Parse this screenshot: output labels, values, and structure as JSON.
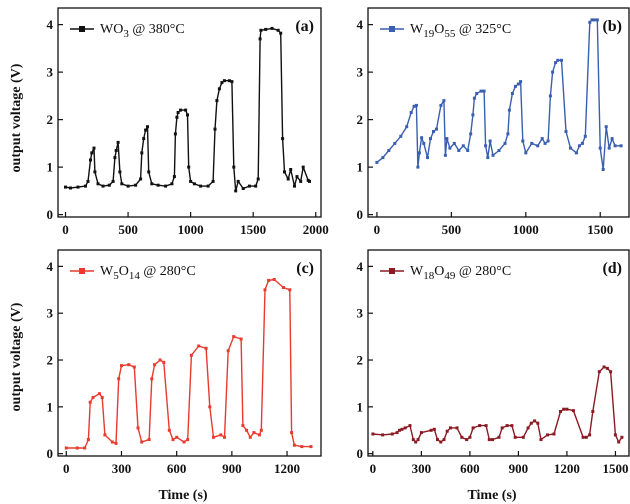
{
  "figure": {
    "shared_ylabel": "output voltage (V)",
    "shared_xlabel": "Time (s)"
  },
  "chart_data": [
    {
      "type": "line",
      "panel_label": "(a)",
      "legend_prefix": "WO",
      "legend_sub1": "3",
      "legend_mid": "",
      "legend_sub2": "",
      "legend_suffix": " @ 380°C",
      "series": [
        {
          "name": "WO3 @ 380°C"
        }
      ],
      "color": "#111111",
      "xlim": [
        -60,
        2050
      ],
      "ylim": [
        -0.05,
        4.35
      ],
      "xticks": [
        0,
        500,
        1000,
        1500,
        2000
      ],
      "yticks": [
        0,
        1,
        2,
        3,
        4
      ],
      "show_y_tick_labels": true,
      "ylabel": "output voltage (V)",
      "xlabel": "",
      "legend_position": "top-left",
      "x": [
        0,
        40,
        100,
        160,
        180,
        200,
        210,
        228,
        235,
        260,
        300,
        350,
        380,
        395,
        405,
        420,
        435,
        450,
        500,
        560,
        600,
        610,
        625,
        640,
        655,
        665,
        690,
        740,
        800,
        850,
        870,
        878,
        890,
        900,
        920,
        960,
        975,
        985,
        1000,
        1030,
        1080,
        1140,
        1180,
        1195,
        1210,
        1230,
        1250,
        1270,
        1310,
        1330,
        1345,
        1360,
        1380,
        1420,
        1470,
        1520,
        1540,
        1555,
        1562,
        1600,
        1650,
        1700,
        1720,
        1735,
        1750,
        1780,
        1800,
        1830,
        1850,
        1880,
        1900,
        1940,
        1950
      ],
      "values": [
        0.58,
        0.56,
        0.58,
        0.6,
        0.7,
        1.15,
        1.3,
        1.4,
        0.9,
        0.65,
        0.6,
        0.62,
        0.7,
        1.2,
        1.35,
        1.52,
        0.9,
        0.65,
        0.6,
        0.62,
        0.75,
        1.3,
        1.6,
        1.78,
        1.85,
        0.9,
        0.65,
        0.62,
        0.6,
        0.65,
        0.8,
        1.7,
        2.05,
        2.15,
        2.2,
        2.2,
        2.1,
        1.0,
        0.7,
        0.65,
        0.6,
        0.6,
        0.7,
        1.8,
        2.4,
        2.65,
        2.78,
        2.82,
        2.82,
        2.8,
        1.0,
        0.5,
        0.7,
        0.55,
        0.6,
        0.6,
        0.75,
        3.7,
        3.88,
        3.9,
        3.92,
        3.88,
        3.82,
        1.6,
        0.9,
        0.75,
        0.95,
        0.6,
        0.8,
        0.7,
        1.0,
        0.72,
        0.7
      ]
    },
    {
      "type": "line",
      "panel_label": "(b)",
      "legend_prefix": "W",
      "legend_sub1": "19",
      "legend_mid": "O",
      "legend_sub2": "55",
      "legend_suffix": " @ 325°C",
      "series": [
        {
          "name": "W19O55 @ 325°C"
        }
      ],
      "color": "#3a5eb0",
      "xlim": [
        -60,
        1700
      ],
      "ylim": [
        -0.05,
        4.35
      ],
      "xticks": [
        0,
        500,
        1000,
        1500
      ],
      "yticks": [
        0,
        1,
        2,
        3,
        4
      ],
      "show_y_tick_labels": true,
      "ylabel": "",
      "xlabel": "",
      "legend_position": "top-left",
      "x": [
        0,
        40,
        80,
        120,
        160,
        200,
        230,
        250,
        265,
        275,
        285,
        300,
        315,
        340,
        360,
        380,
        400,
        430,
        450,
        460,
        470,
        490,
        520,
        550,
        580,
        610,
        630,
        645,
        655,
        670,
        700,
        720,
        730,
        745,
        760,
        780,
        820,
        860,
        880,
        890,
        910,
        930,
        950,
        965,
        980,
        1000,
        1040,
        1080,
        1110,
        1130,
        1150,
        1165,
        1180,
        1200,
        1215,
        1240,
        1270,
        1300,
        1340,
        1360,
        1380,
        1400,
        1430,
        1445,
        1460,
        1480,
        1500,
        1520,
        1540,
        1560,
        1580,
        1600,
        1640
      ],
      "values": [
        1.1,
        1.2,
        1.35,
        1.5,
        1.65,
        1.85,
        2.15,
        2.28,
        2.3,
        1.0,
        1.3,
        1.62,
        1.5,
        1.2,
        1.6,
        1.75,
        1.8,
        2.3,
        2.4,
        1.25,
        1.6,
        1.4,
        1.5,
        1.35,
        1.45,
        1.35,
        1.7,
        2.1,
        2.45,
        2.55,
        2.6,
        2.6,
        1.45,
        1.2,
        1.55,
        1.25,
        1.35,
        1.5,
        1.7,
        2.2,
        2.55,
        2.7,
        2.75,
        2.8,
        1.55,
        1.3,
        1.5,
        1.45,
        1.6,
        1.5,
        1.55,
        2.5,
        3.0,
        3.2,
        3.25,
        3.25,
        1.75,
        1.4,
        1.3,
        1.45,
        1.5,
        1.65,
        4.05,
        4.1,
        4.1,
        4.1,
        1.4,
        0.95,
        1.85,
        1.4,
        1.6,
        1.45,
        1.45
      ]
    },
    {
      "type": "line",
      "panel_label": "(c)",
      "legend_prefix": "W",
      "legend_sub1": "5",
      "legend_mid": "O",
      "legend_sub2": "14",
      "legend_suffix": " @ 280°C",
      "series": [
        {
          "name": "W5O14 @ 280°C"
        }
      ],
      "color": "#e83a2e",
      "xlim": [
        -45,
        1390
      ],
      "ylim": [
        -0.05,
        4.35
      ],
      "xticks": [
        0,
        300,
        600,
        900,
        1200
      ],
      "yticks": [
        0,
        1,
        2,
        3,
        4
      ],
      "show_y_tick_labels": true,
      "ylabel": "output voltage (V)",
      "xlabel": "Time (s)",
      "legend_position": "top-left",
      "x": [
        0,
        60,
        100,
        120,
        130,
        145,
        180,
        195,
        210,
        250,
        270,
        285,
        300,
        340,
        370,
        390,
        410,
        450,
        465,
        480,
        510,
        530,
        560,
        580,
        600,
        640,
        660,
        680,
        720,
        760,
        780,
        800,
        840,
        860,
        880,
        910,
        950,
        960,
        980,
        1000,
        1020,
        1050,
        1060,
        1080,
        1100,
        1130,
        1180,
        1215,
        1225,
        1240,
        1280,
        1330
      ],
      "values": [
        0.12,
        0.12,
        0.12,
        0.3,
        1.1,
        1.2,
        1.28,
        1.2,
        0.4,
        0.25,
        0.22,
        1.6,
        1.88,
        1.9,
        1.85,
        0.55,
        0.25,
        0.3,
        1.6,
        1.9,
        2.0,
        1.95,
        0.5,
        0.3,
        0.35,
        0.25,
        0.3,
        2.1,
        2.3,
        2.25,
        1.0,
        0.35,
        0.4,
        0.35,
        2.2,
        2.5,
        2.45,
        0.6,
        0.5,
        0.35,
        0.45,
        0.4,
        0.5,
        3.5,
        3.7,
        3.72,
        3.55,
        3.5,
        0.45,
        0.18,
        0.15,
        0.15
      ]
    },
    {
      "type": "line",
      "panel_label": "(d)",
      "legend_prefix": "W",
      "legend_sub1": "18",
      "legend_mid": "O",
      "legend_sub2": "49",
      "legend_suffix": " @ 280°C",
      "series": [
        {
          "name": "W18O49 @ 280°C"
        }
      ],
      "color": "#8b1a22",
      "xlim": [
        -30,
        1590
      ],
      "ylim": [
        -0.05,
        4.35
      ],
      "xticks": [
        0,
        300,
        600,
        900,
        1200,
        1500
      ],
      "yticks": [
        0,
        1,
        2,
        3,
        4
      ],
      "show_y_tick_labels": true,
      "ylabel": "",
      "xlabel": "Time (s)",
      "legend_position": "top-left",
      "x": [
        0,
        60,
        120,
        150,
        165,
        180,
        200,
        230,
        250,
        265,
        280,
        300,
        360,
        380,
        400,
        420,
        440,
        460,
        480,
        520,
        550,
        580,
        600,
        620,
        660,
        700,
        720,
        740,
        780,
        800,
        830,
        860,
        880,
        930,
        960,
        980,
        1000,
        1020,
        1040,
        1080,
        1120,
        1160,
        1180,
        1200,
        1240,
        1300,
        1320,
        1340,
        1360,
        1400,
        1430,
        1450,
        1470,
        1500,
        1520,
        1540
      ],
      "values": [
        0.42,
        0.4,
        0.42,
        0.45,
        0.5,
        0.52,
        0.55,
        0.6,
        0.3,
        0.25,
        0.3,
        0.45,
        0.5,
        0.52,
        0.3,
        0.25,
        0.3,
        0.48,
        0.55,
        0.55,
        0.35,
        0.3,
        0.35,
        0.55,
        0.6,
        0.6,
        0.3,
        0.3,
        0.35,
        0.55,
        0.6,
        0.6,
        0.35,
        0.35,
        0.55,
        0.65,
        0.7,
        0.65,
        0.3,
        0.4,
        0.42,
        0.9,
        0.95,
        0.95,
        0.92,
        0.35,
        0.35,
        0.4,
        0.9,
        1.75,
        1.85,
        1.82,
        1.75,
        0.4,
        0.25,
        0.35
      ]
    }
  ]
}
